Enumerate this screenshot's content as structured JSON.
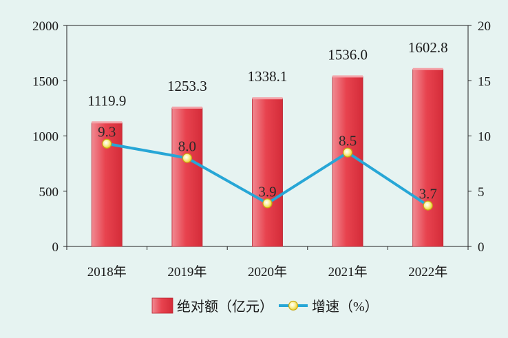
{
  "chart_data": {
    "type": "bar+line",
    "categories": [
      "2018年",
      "2019年",
      "2020年",
      "2021年",
      "2022年"
    ],
    "series": [
      {
        "name": "绝对额（亿元）",
        "type": "bar",
        "axis": "left",
        "values": [
          1119.9,
          1253.3,
          1338.1,
          1536.0,
          1602.8
        ],
        "labels": [
          "1119.9",
          "1253.3",
          "1338.1",
          "1536.0",
          "1602.8"
        ],
        "color": "#e8434f"
      },
      {
        "name": "增速（%）",
        "type": "line",
        "axis": "right",
        "values": [
          9.3,
          8.0,
          3.9,
          8.5,
          3.7
        ],
        "labels": [
          "9.3",
          "8.0",
          "3.9",
          "8.5",
          "3.7"
        ],
        "color": "#27a6d6",
        "marker_color": "#f4e35a"
      }
    ],
    "y_left": {
      "lim": [
        0,
        2000
      ],
      "ticks": [
        0,
        500,
        1000,
        1500,
        2000
      ],
      "tick_labels": [
        "0",
        "500",
        "1000",
        "1500",
        "2000"
      ]
    },
    "y_right": {
      "lim": [
        0,
        20
      ],
      "ticks": [
        0,
        5,
        10,
        15,
        20
      ],
      "tick_labels": [
        "0",
        "5",
        "10",
        "15",
        "20"
      ]
    },
    "grid": false,
    "legend_position": "bottom-center",
    "background": "#e6f3f1"
  }
}
